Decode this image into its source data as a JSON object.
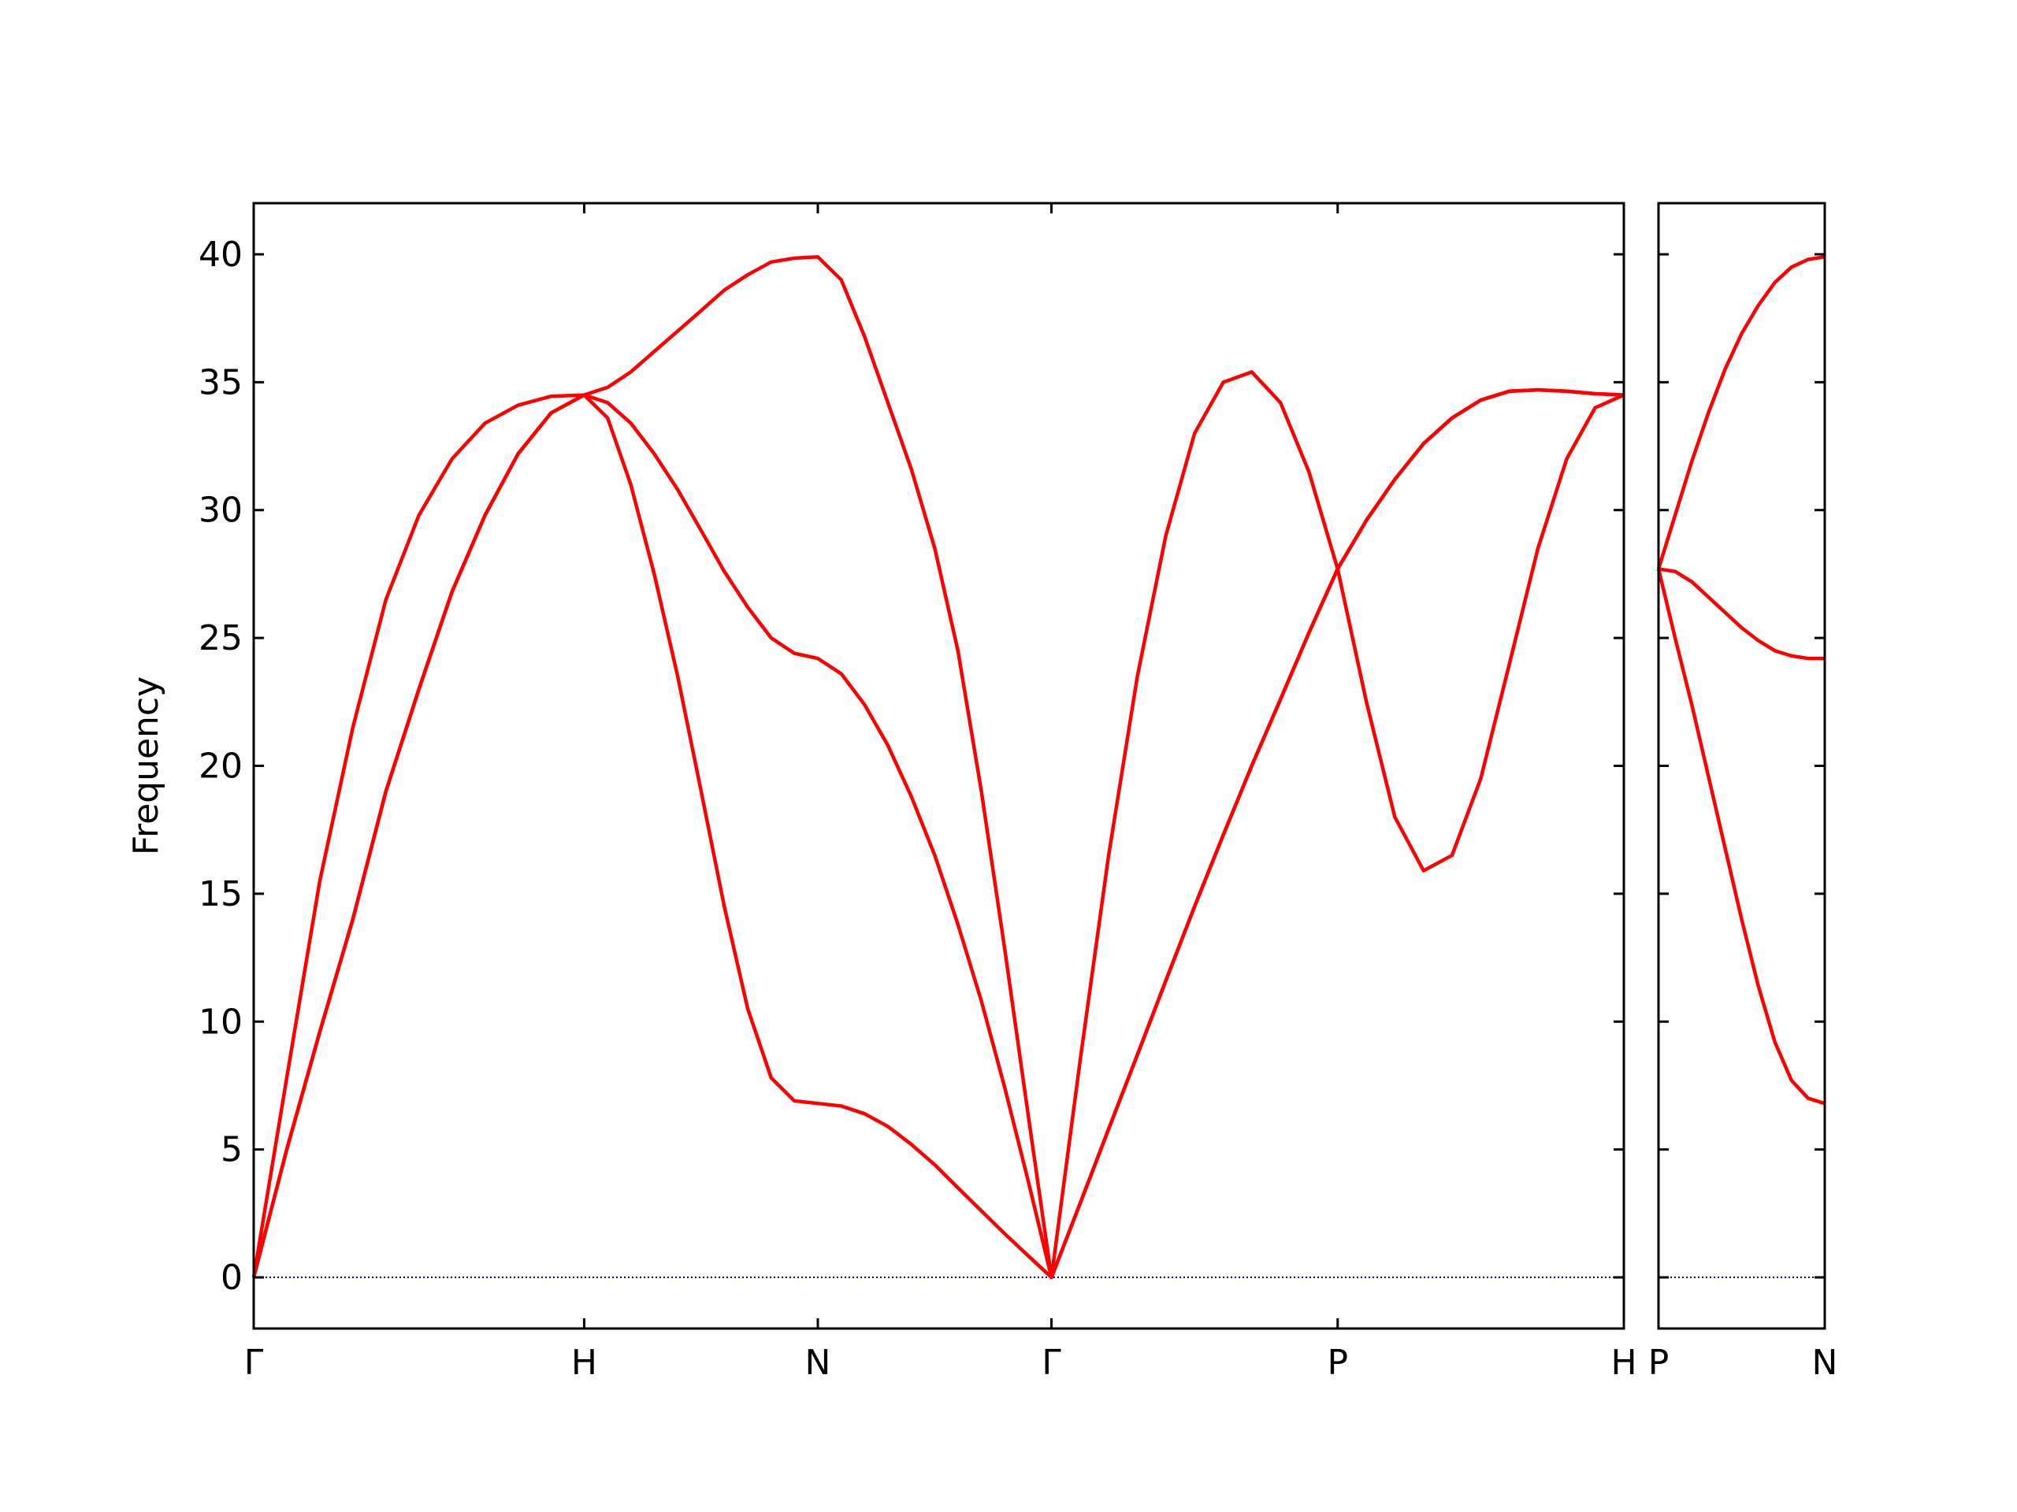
{
  "chart_data": [
    {
      "type": "line",
      "ylabel": "Frequency",
      "x": [
        0,
        0.1,
        0.2,
        0.3,
        0.4,
        0.5,
        0.6,
        0.7,
        0.8,
        0.9,
        1.0,
        1.071,
        1.141,
        1.212,
        1.283,
        1.354,
        1.424,
        1.495,
        1.566,
        1.636,
        1.707,
        1.778,
        1.848,
        1.919,
        1.99,
        2.061,
        2.131,
        2.202,
        2.273,
        2.343,
        2.414,
        2.501,
        2.587,
        2.674,
        2.76,
        2.847,
        2.934,
        3.02,
        3.107,
        3.193,
        3.28,
        3.367,
        3.453,
        3.54,
        3.626,
        3.713,
        3.8,
        3.886,
        3.973,
        4.059,
        4.146
      ],
      "series": [
        {
          "color": "#ff0000",
          "values": [
            0,
            7.8,
            15.5,
            21.5,
            26.5,
            29.8,
            32.0,
            33.4,
            34.1,
            34.45,
            34.5,
            34.8,
            35.4,
            36.2,
            37.0,
            37.8,
            38.6,
            39.2,
            39.7,
            39.85,
            39.9,
            39.0,
            36.8,
            34.2,
            31.6,
            28.5,
            24.5,
            19.0,
            12.8,
            6.4,
            0,
            8.5,
            16.5,
            23.5,
            29.0,
            33.0,
            35.0,
            35.4,
            34.2,
            31.5,
            27.7,
            22.5,
            18.0,
            15.9,
            16.5,
            19.5,
            24.0,
            28.5,
            32.0,
            34.0,
            34.5
          ]
        },
        {
          "color": "#ff0000",
          "values": [
            0,
            5.0,
            9.6,
            14.0,
            19.0,
            23.0,
            26.8,
            29.8,
            32.2,
            33.8,
            34.5,
            34.2,
            33.4,
            32.2,
            30.8,
            29.2,
            27.6,
            26.2,
            25.0,
            24.4,
            24.2,
            23.6,
            22.4,
            20.8,
            18.8,
            16.5,
            13.8,
            10.8,
            7.4,
            3.8,
            0,
            2.9,
            5.8,
            8.7,
            11.6,
            14.5,
            17.3,
            20.0,
            22.6,
            25.2,
            27.7,
            29.6,
            31.2,
            32.6,
            33.6,
            34.3,
            34.65,
            34.7,
            34.65,
            34.55,
            34.5
          ]
        },
        {
          "color": "#ff0000",
          "values": [
            0,
            5.0,
            9.6,
            14.0,
            19.0,
            23.0,
            26.8,
            29.8,
            32.2,
            33.8,
            34.5,
            33.6,
            31.0,
            27.5,
            23.5,
            19.0,
            14.5,
            10.5,
            7.8,
            6.9,
            6.8,
            6.7,
            6.4,
            5.9,
            5.2,
            4.4,
            3.5,
            2.6,
            1.7,
            0.85,
            0,
            2.9,
            5.8,
            8.7,
            11.6,
            14.5,
            17.3,
            20.0,
            22.6,
            25.2,
            27.7,
            29.6,
            31.2,
            32.6,
            33.6,
            34.3,
            34.65,
            34.7,
            34.65,
            34.55,
            34.5
          ]
        }
      ],
      "xlim": [
        0,
        4.146
      ],
      "xticks": [
        {
          "value": 0,
          "label": "Γ"
        },
        {
          "value": 1,
          "label": "H"
        },
        {
          "value": 1.707,
          "label": "N"
        },
        {
          "value": 2.414,
          "label": "Γ"
        },
        {
          "value": 3.28,
          "label": "P"
        },
        {
          "value": 4.146,
          "label": "H"
        }
      ],
      "ylim": [
        -2,
        42
      ],
      "yticks": [
        0,
        5,
        10,
        15,
        20,
        25,
        30,
        35,
        40
      ],
      "show_ytick_labels": true,
      "hline": 0,
      "hline_color": "#0000aa"
    },
    {
      "type": "line",
      "x": [
        0,
        0.05,
        0.1,
        0.15,
        0.2,
        0.25,
        0.3,
        0.35,
        0.4,
        0.45,
        0.5
      ],
      "series": [
        {
          "color": "#ff0000",
          "values": [
            27.7,
            29.8,
            31.9,
            33.8,
            35.5,
            36.9,
            38.0,
            38.9,
            39.5,
            39.8,
            39.9
          ]
        },
        {
          "color": "#ff0000",
          "values": [
            27.7,
            27.6,
            27.2,
            26.6,
            26.0,
            25.4,
            24.9,
            24.5,
            24.3,
            24.2,
            24.2
          ]
        },
        {
          "color": "#ff0000",
          "values": [
            27.7,
            25.0,
            22.4,
            19.6,
            16.8,
            14.0,
            11.4,
            9.2,
            7.7,
            7.0,
            6.8
          ]
        }
      ],
      "xlim": [
        0,
        0.5
      ],
      "xticks": [
        {
          "value": 0,
          "label": "P"
        },
        {
          "value": 0.5,
          "label": "N"
        }
      ],
      "ylim": [
        -2,
        42
      ],
      "yticks": [
        0,
        5,
        10,
        15,
        20,
        25,
        30,
        35,
        40
      ],
      "show_ytick_labels": false,
      "hline": 0,
      "hline_color": "#0000aa"
    }
  ]
}
